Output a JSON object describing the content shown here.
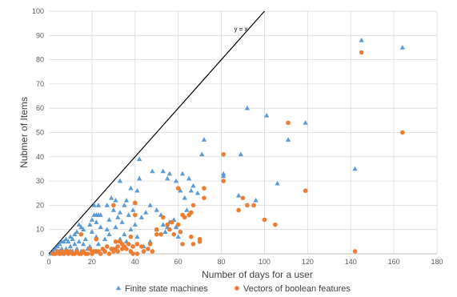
{
  "chart_data": {
    "type": "scatter",
    "title": "",
    "xlabel": "Number of days for a user",
    "ylabel": "Nubmer of Items",
    "xlim": [
      0,
      180
    ],
    "ylim": [
      0,
      100
    ],
    "x_ticks": [
      0,
      20,
      40,
      60,
      80,
      100,
      120,
      140,
      160,
      180
    ],
    "y_ticks": [
      0,
      10,
      20,
      30,
      40,
      50,
      60,
      70,
      80,
      90,
      100
    ],
    "grid": true,
    "legend_position": "bottom",
    "reference_line": {
      "label": "y = x",
      "slope": 1,
      "intercept": 0
    },
    "series": [
      {
        "name": "Finite state machines",
        "marker": "triangle",
        "color": "#5B9BD5",
        "points": [
          [
            145,
            88
          ],
          [
            164,
            85
          ],
          [
            92,
            60
          ],
          [
            101,
            57
          ],
          [
            119,
            54
          ],
          [
            111,
            47
          ],
          [
            72,
            47
          ],
          [
            71,
            41
          ],
          [
            89,
            41
          ],
          [
            81,
            33
          ],
          [
            81,
            32
          ],
          [
            142,
            35
          ],
          [
            106,
            29
          ],
          [
            42,
            39
          ],
          [
            48,
            34
          ],
          [
            53,
            34
          ],
          [
            56,
            33
          ],
          [
            55,
            31
          ],
          [
            62,
            33
          ],
          [
            65,
            31
          ],
          [
            59,
            30
          ],
          [
            67,
            28
          ],
          [
            33,
            30
          ],
          [
            38,
            27
          ],
          [
            41,
            26
          ],
          [
            42,
            31
          ],
          [
            61,
            26
          ],
          [
            66,
            26
          ],
          [
            69,
            25
          ],
          [
            63,
            23
          ],
          [
            88,
            24
          ],
          [
            96,
            22
          ],
          [
            29,
            23
          ],
          [
            31,
            22
          ],
          [
            36,
            22
          ],
          [
            40,
            21
          ],
          [
            35,
            20
          ],
          [
            21,
            20
          ],
          [
            23,
            20
          ],
          [
            27,
            20
          ],
          [
            47,
            20
          ],
          [
            50,
            18
          ],
          [
            52,
            16
          ],
          [
            45,
            17
          ],
          [
            30,
            18
          ],
          [
            33,
            17
          ],
          [
            21,
            16
          ],
          [
            22,
            16
          ],
          [
            23,
            16
          ],
          [
            24,
            16
          ],
          [
            20,
            14
          ],
          [
            19,
            12
          ],
          [
            22,
            13
          ],
          [
            28,
            14
          ],
          [
            32,
            15
          ],
          [
            34,
            13
          ],
          [
            37,
            16
          ],
          [
            39,
            18
          ],
          [
            43,
            15
          ],
          [
            53,
            12
          ],
          [
            56,
            13
          ],
          [
            59,
            11
          ],
          [
            55,
            11
          ],
          [
            14,
            12
          ],
          [
            15,
            11
          ],
          [
            16,
            10
          ],
          [
            13,
            9
          ],
          [
            12,
            8
          ],
          [
            10,
            7
          ],
          [
            11,
            6
          ],
          [
            9,
            5
          ],
          [
            8,
            6
          ],
          [
            7,
            5
          ],
          [
            6,
            5
          ],
          [
            5,
            4
          ],
          [
            4,
            3
          ],
          [
            3,
            2
          ],
          [
            2,
            1
          ],
          [
            6,
            2
          ],
          [
            8,
            2
          ],
          [
            10,
            3
          ],
          [
            12,
            4
          ],
          [
            14,
            5
          ],
          [
            17,
            6
          ],
          [
            20,
            9
          ],
          [
            22,
            7
          ],
          [
            24,
            11
          ],
          [
            26,
            6
          ],
          [
            28,
            8
          ],
          [
            31,
            11
          ],
          [
            35,
            8
          ],
          [
            38,
            10
          ],
          [
            41,
            7
          ],
          [
            47,
            5
          ],
          [
            50,
            10
          ],
          [
            54,
            9
          ],
          [
            58,
            14
          ],
          [
            64,
            18
          ],
          [
            60,
            7
          ],
          [
            44,
            3
          ],
          [
            25,
            2
          ],
          [
            18,
            2
          ],
          [
            15,
            1
          ],
          [
            9,
            1
          ],
          [
            5,
            1
          ],
          [
            1,
            0
          ],
          [
            3,
            0
          ],
          [
            6,
            0
          ],
          [
            11,
            1
          ],
          [
            13,
            2
          ],
          [
            19,
            3
          ],
          [
            16,
            4
          ],
          [
            23,
            4
          ],
          [
            30,
            2
          ],
          [
            36,
            5
          ],
          [
            40,
            12
          ],
          [
            27,
            10
          ],
          [
            33,
            6
          ]
        ]
      },
      {
        "name": "Vectors of boolean features",
        "marker": "circle",
        "color": "#ED7D31",
        "points": [
          [
            145,
            83
          ],
          [
            164,
            50
          ],
          [
            111,
            54
          ],
          [
            81,
            41
          ],
          [
            119,
            26
          ],
          [
            81,
            30
          ],
          [
            90,
            23
          ],
          [
            72,
            27
          ],
          [
            72,
            23
          ],
          [
            60,
            27
          ],
          [
            67,
            20
          ],
          [
            40,
            21
          ],
          [
            92,
            20
          ],
          [
            95,
            20
          ],
          [
            88,
            18
          ],
          [
            66,
            17
          ],
          [
            62,
            16
          ],
          [
            63,
            15
          ],
          [
            65,
            16
          ],
          [
            53,
            15
          ],
          [
            57,
            13
          ],
          [
            55,
            12
          ],
          [
            60,
            12
          ],
          [
            56,
            10
          ],
          [
            50,
            10
          ],
          [
            50,
            8
          ],
          [
            100,
            14
          ],
          [
            105,
            12
          ],
          [
            142,
            1
          ],
          [
            30,
            20
          ],
          [
            40,
            16
          ],
          [
            22,
            6
          ],
          [
            15,
            8
          ],
          [
            38,
            7
          ],
          [
            33,
            5
          ],
          [
            31,
            5
          ],
          [
            34,
            4
          ],
          [
            32,
            3
          ],
          [
            37,
            4
          ],
          [
            41,
            4
          ],
          [
            47,
            4
          ],
          [
            52,
            8
          ],
          [
            58,
            8
          ],
          [
            61,
            9
          ],
          [
            66,
            7
          ],
          [
            70,
            6
          ],
          [
            70,
            5
          ],
          [
            67,
            4
          ],
          [
            62,
            4
          ],
          [
            46,
            2
          ],
          [
            43,
            3
          ],
          [
            36,
            2
          ],
          [
            29,
            2
          ],
          [
            27,
            3
          ],
          [
            25,
            2
          ],
          [
            23,
            1
          ],
          [
            21,
            1
          ],
          [
            19,
            2
          ],
          [
            17,
            0
          ],
          [
            13,
            1
          ],
          [
            11,
            0
          ],
          [
            9,
            0
          ],
          [
            7,
            0
          ],
          [
            5,
            0
          ],
          [
            3,
            0
          ],
          [
            2,
            0
          ],
          [
            4,
            1
          ],
          [
            6,
            1
          ],
          [
            8,
            1
          ],
          [
            10,
            1
          ],
          [
            12,
            0
          ],
          [
            14,
            0
          ],
          [
            16,
            1
          ],
          [
            18,
            0
          ],
          [
            20,
            0
          ],
          [
            22,
            1
          ],
          [
            24,
            0
          ],
          [
            26,
            1
          ],
          [
            28,
            0
          ],
          [
            30,
            1
          ],
          [
            32,
            1
          ],
          [
            34,
            2
          ],
          [
            38,
            1
          ],
          [
            39,
            3
          ],
          [
            44,
            1
          ],
          [
            48,
            1
          ],
          [
            35,
            3
          ],
          [
            31,
            2
          ],
          [
            39,
            0
          ],
          [
            41,
            0
          ],
          [
            20,
            1
          ],
          [
            15,
            0
          ]
        ]
      }
    ]
  }
}
